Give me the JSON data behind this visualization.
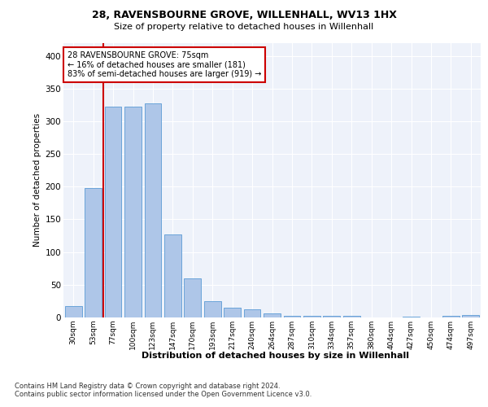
{
  "title1": "28, RAVENSBOURNE GROVE, WILLENHALL, WV13 1HX",
  "title2": "Size of property relative to detached houses in Willenhall",
  "xlabel": "Distribution of detached houses by size in Willenhall",
  "ylabel": "Number of detached properties",
  "categories": [
    "30sqm",
    "53sqm",
    "77sqm",
    "100sqm",
    "123sqm",
    "147sqm",
    "170sqm",
    "193sqm",
    "217sqm",
    "240sqm",
    "264sqm",
    "287sqm",
    "310sqm",
    "334sqm",
    "357sqm",
    "380sqm",
    "404sqm",
    "427sqm",
    "450sqm",
    "474sqm",
    "497sqm"
  ],
  "values": [
    17,
    198,
    322,
    322,
    327,
    127,
    60,
    25,
    15,
    13,
    6,
    3,
    3,
    2,
    3,
    0,
    0,
    1,
    0,
    3,
    4
  ],
  "bar_color": "#aec6e8",
  "bar_edge_color": "#5b9bd5",
  "marker_index": 2,
  "annotation_line1": "28 RAVENSBOURNE GROVE: 75sqm",
  "annotation_line2": "← 16% of detached houses are smaller (181)",
  "annotation_line3": "83% of semi-detached houses are larger (919) →",
  "vline_color": "#cc0000",
  "annotation_box_color": "#cc0000",
  "footer1": "Contains HM Land Registry data © Crown copyright and database right 2024.",
  "footer2": "Contains public sector information licensed under the Open Government Licence v3.0.",
  "ylim": [
    0,
    420
  ],
  "yticks": [
    0,
    50,
    100,
    150,
    200,
    250,
    300,
    350,
    400
  ],
  "plot_bg": "#eef2fa"
}
